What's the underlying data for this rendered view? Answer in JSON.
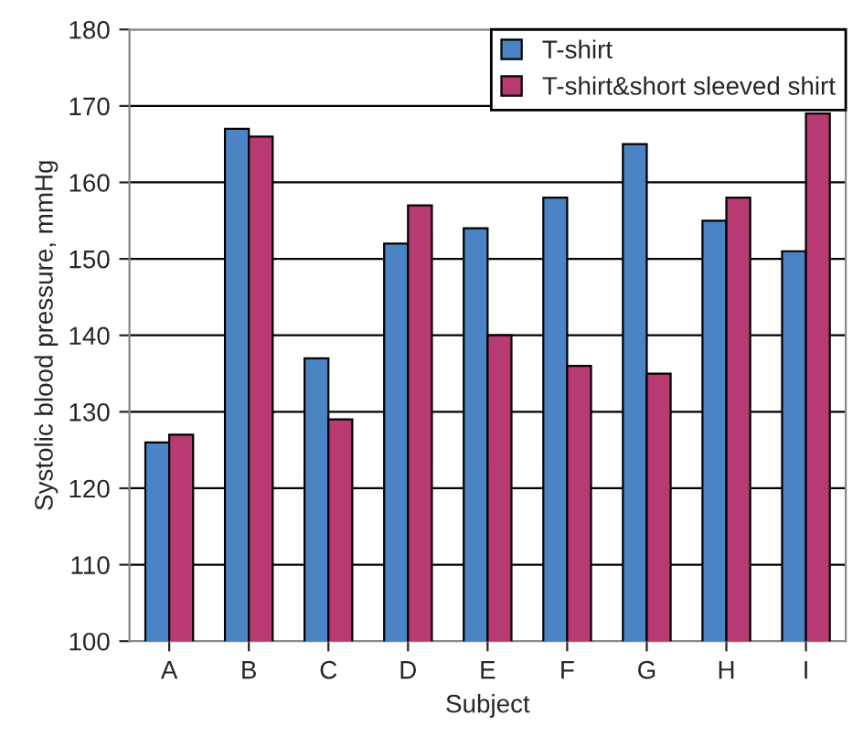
{
  "chart_data": {
    "type": "bar",
    "xlabel": "Subject",
    "ylabel": "Systolic blood pressure, mmHg",
    "categories": [
      "A",
      "B",
      "C",
      "D",
      "E",
      "F",
      "G",
      "H",
      "I"
    ],
    "series": [
      {
        "name": "T-shirt",
        "color": "#4a84c4",
        "values": [
          126,
          167,
          137,
          152,
          154,
          158,
          165,
          155,
          151
        ]
      },
      {
        "name": "T-shirt&short sleeved shirt",
        "color": "#b83a72",
        "values": [
          127,
          166,
          129,
          157,
          140,
          136,
          135,
          158,
          169
        ]
      }
    ],
    "ylim": [
      100,
      180
    ],
    "yticks": [
      100,
      110,
      120,
      130,
      140,
      150,
      160,
      170,
      180
    ],
    "grid": "y",
    "legend": "top right"
  }
}
